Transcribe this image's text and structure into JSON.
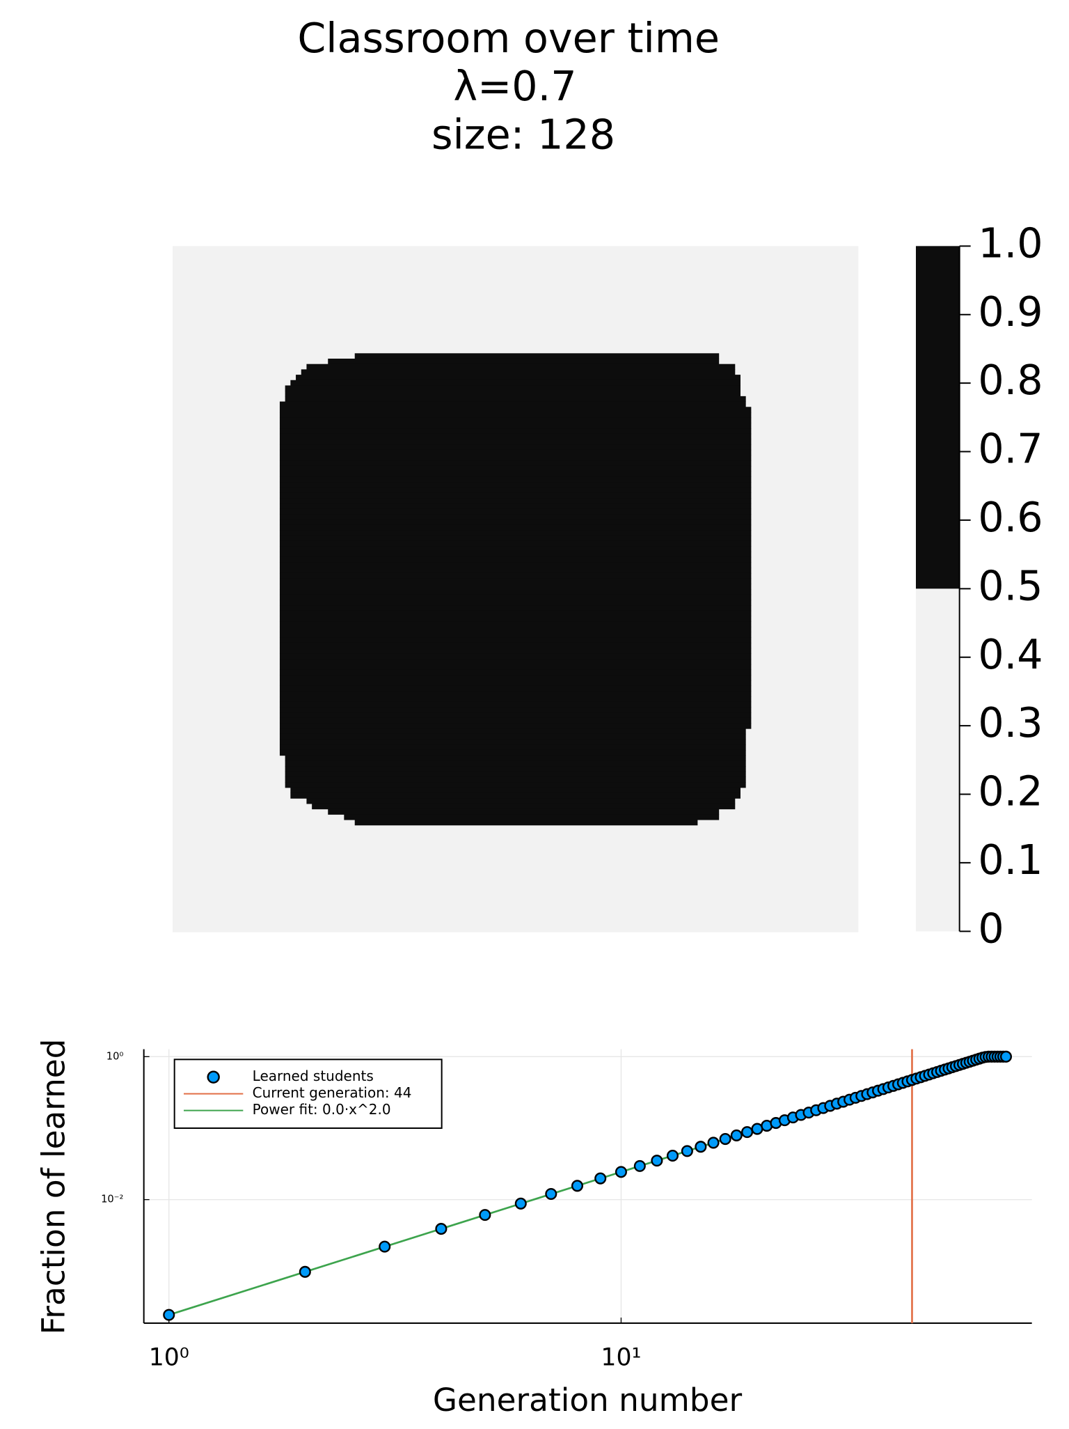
{
  "chart_data": [
    {
      "type": "heatmap",
      "title": [
        "Classroom over time",
        "λ=0.7",
        "size: 128"
      ],
      "colors": [
        "#f2f2f2",
        "#0d0d0d"
      ],
      "z_filled_column_spans": [
        null,
        null,
        null,
        null,
        null,
        null,
        null,
        null,
        null,
        null,
        null,
        null,
        null,
        null,
        null,
        null,
        null,
        null,
        null,
        null,
        [
          34,
          102
        ],
        [
          29,
          102
        ],
        [
          25,
          105
        ],
        [
          24,
          105
        ],
        [
          23,
          106
        ],
        [
          22,
          106
        ],
        [
          21,
          106
        ],
        [
          21,
          106
        ],
        [
          21,
          107
        ],
        [
          20,
          107
        ],
        [
          20,
          108
        ],
        [
          20,
          108
        ],
        [
          20,
          108
        ],
        [
          20,
          108
        ],
        [
          20,
          108
        ],
        [
          20,
          108
        ],
        [
          20,
          108
        ],
        [
          20,
          108
        ],
        [
          20,
          108
        ],
        [
          20,
          108
        ],
        [
          20,
          108
        ],
        [
          20,
          108
        ],
        [
          20,
          108
        ],
        [
          20,
          108
        ],
        [
          20,
          108
        ],
        [
          20,
          108
        ],
        [
          20,
          108
        ],
        [
          20,
          108
        ],
        [
          20,
          108
        ],
        [
          20,
          108
        ],
        [
          20,
          108
        ],
        [
          20,
          108
        ],
        [
          20,
          108
        ],
        [
          20,
          108
        ],
        [
          20,
          108
        ],
        [
          20,
          108
        ],
        [
          20,
          108
        ],
        [
          20,
          108
        ],
        [
          20,
          108
        ],
        [
          20,
          108
        ],
        [
          20,
          108
        ],
        [
          20,
          108
        ],
        [
          20,
          108
        ],
        [
          20,
          108
        ],
        [
          20,
          108
        ],
        [
          20,
          108
        ],
        [
          20,
          108
        ],
        [
          20,
          108
        ],
        [
          20,
          108
        ],
        [
          20,
          108
        ],
        [
          20,
          108
        ],
        [
          20,
          108
        ],
        [
          20,
          108
        ],
        [
          20,
          108
        ],
        [
          20,
          108
        ],
        [
          20,
          108
        ],
        [
          20,
          108
        ],
        [
          20,
          108
        ],
        [
          20,
          108
        ],
        [
          20,
          108
        ],
        [
          20,
          108
        ],
        [
          20,
          108
        ],
        [
          20,
          108
        ],
        [
          20,
          108
        ],
        [
          20,
          108
        ],
        [
          20,
          108
        ],
        [
          20,
          108
        ],
        [
          20,
          108
        ],
        [
          20,
          108
        ],
        [
          20,
          108
        ],
        [
          20,
          107
        ],
        [
          20,
          107
        ],
        [
          20,
          107
        ],
        [
          20,
          107
        ],
        [
          20,
          107
        ],
        [
          21,
          107
        ],
        [
          21,
          107
        ],
        [
          21,
          107
        ],
        [
          21,
          107
        ],
        [
          21,
          107
        ],
        [
          21,
          107
        ],
        [
          22,
          106
        ],
        [
          22,
          106
        ],
        [
          25,
          105
        ],
        [
          26,
          105
        ],
        [
          29,
          102
        ],
        [
          32,
          102
        ],
        [
          34,
          98
        ],
        null,
        null,
        null,
        null,
        null,
        null,
        null,
        null,
        null,
        null,
        null,
        null,
        null,
        null,
        null,
        null,
        null,
        null,
        null,
        null
      ],
      "colorbar": {
        "lim": [
          0,
          1
        ],
        "ticks": [
          0,
          0.1,
          0.2,
          0.3,
          0.4,
          0.5,
          0.6,
          0.7,
          0.8,
          0.9,
          {
            "value": 1,
            "label": "1.0"
          }
        ]
      }
    },
    {
      "type": "scatter",
      "xlabel": "Generation number",
      "ylabel": "Fraction of learned",
      "log_x": true,
      "log_y": true,
      "grid": true,
      "legend": "top-left",
      "xlim": [
        0.88,
        81
      ],
      "ylim": [
        0.000187,
        1.27
      ],
      "xticks": [
        {
          "value": 1,
          "label": "10⁰"
        },
        {
          "value": 10,
          "label": "10¹"
        }
      ],
      "yticks": [
        {
          "value": 0.01,
          "label": "10⁻²"
        },
        {
          "value": 1,
          "label": "10⁰"
        }
      ],
      "series": [
        {
          "name": "Learned students",
          "kind": "points",
          "color": "#009af9",
          "x": [
            1,
            2,
            3,
            4,
            5,
            6,
            7,
            8,
            9,
            10,
            11,
            12,
            13,
            14,
            15,
            16,
            17,
            18,
            19,
            20,
            21,
            22,
            23,
            24,
            25,
            26,
            27,
            28,
            29,
            30,
            31,
            32,
            33,
            34,
            35,
            36,
            37,
            38,
            39,
            40,
            41,
            42,
            43,
            44,
            45,
            46,
            47,
            48,
            49,
            50,
            51,
            52,
            53,
            54,
            55,
            56,
            57,
            58,
            59,
            60,
            61,
            62,
            63,
            64,
            65,
            66,
            67,
            68,
            69,
            70,
            71
          ],
          "values": [
            0.000244,
            0.000976,
            0.0022,
            0.0039,
            0.0061,
            0.0088,
            0.012,
            0.0156,
            0.0198,
            0.0244,
            0.0295,
            0.0351,
            0.0412,
            0.0478,
            0.0549,
            0.0625,
            0.0705,
            0.0791,
            0.0881,
            0.0976,
            0.108,
            0.118,
            0.129,
            0.141,
            0.153,
            0.165,
            0.178,
            0.191,
            0.205,
            0.22,
            0.234,
            0.25,
            0.266,
            0.282,
            0.299,
            0.316,
            0.334,
            0.352,
            0.371,
            0.39,
            0.41,
            0.43,
            0.451,
            0.472,
            0.494,
            0.516,
            0.539,
            0.562,
            0.586,
            0.61,
            0.635,
            0.66,
            0.685,
            0.712,
            0.738,
            0.765,
            0.793,
            0.821,
            0.849,
            0.878,
            0.908,
            0.938,
            0.968,
            0.99,
            1,
            1,
            1,
            1,
            1,
            1,
            1
          ]
        },
        {
          "name": "Current generation: 44",
          "kind": "vline",
          "color": "#e26f46",
          "x": [
            44
          ]
        },
        {
          "name": "Power fit: 0.0·x^2.0",
          "kind": "line",
          "color": "#3da44d",
          "x": [
            1,
            64
          ],
          "values": [
            0.000244,
            0.999
          ]
        }
      ]
    }
  ]
}
